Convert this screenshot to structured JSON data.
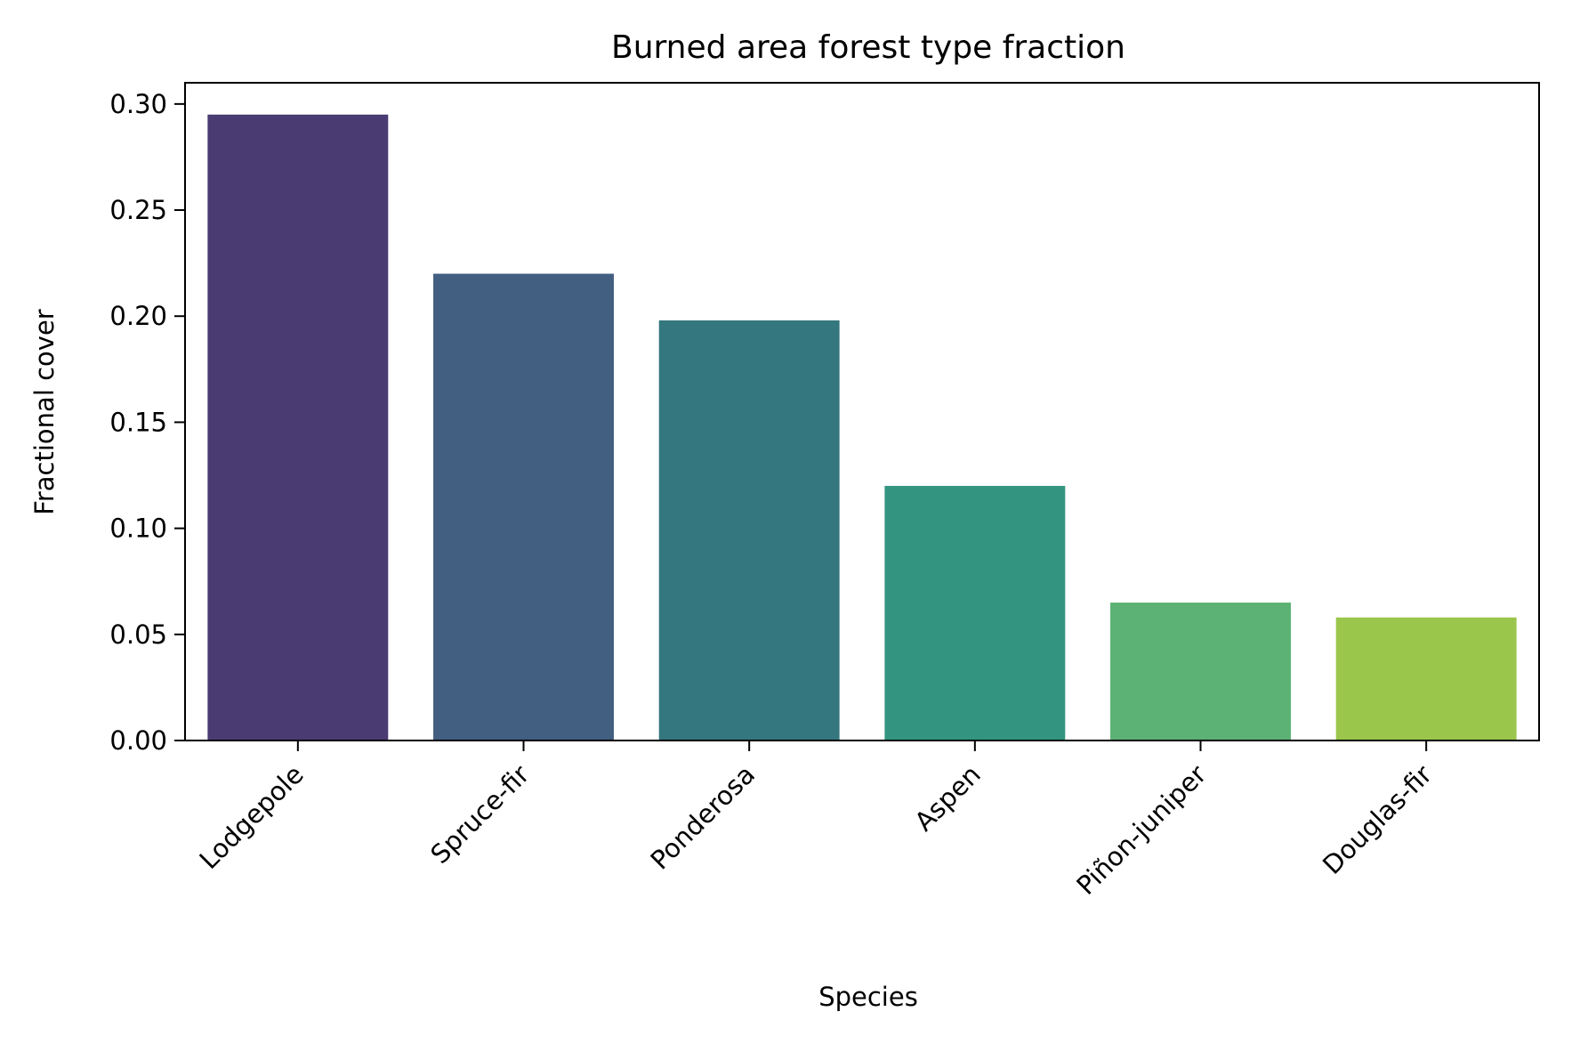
{
  "chart_data": {
    "type": "bar",
    "title": "Burned area forest type fraction",
    "xlabel": "Species",
    "ylabel": "Fractional cover",
    "categories": [
      "Lodgepole",
      "Spruce-fir",
      "Ponderosa",
      "Aspen",
      "Piñon-juniper",
      "Douglas-fir"
    ],
    "values": [
      0.295,
      0.22,
      0.198,
      0.12,
      0.065,
      0.058
    ],
    "ylim": [
      0,
      0.31
    ],
    "yticks": [
      0.0,
      0.05,
      0.1,
      0.15,
      0.2,
      0.25,
      0.3
    ],
    "ytick_labels": [
      "0.00",
      "0.05",
      "0.10",
      "0.15",
      "0.20",
      "0.25",
      "0.30"
    ],
    "grid": false,
    "legend": "none",
    "colors": [
      "#4a3b73",
      "#425e80",
      "#35777f",
      "#33957f",
      "#5bb274",
      "#9ac64c"
    ]
  }
}
